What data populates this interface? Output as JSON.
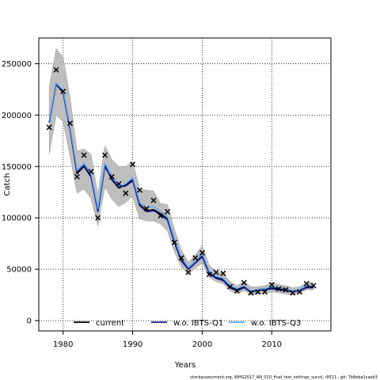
{
  "chart_data": {
    "type": "line",
    "xlabel": "Years",
    "ylabel": "Catch",
    "xlim": [
      1976.5,
      2018.5
    ],
    "ylim": [
      -10000,
      275000
    ],
    "xticks": [
      1980,
      1990,
      2000,
      2010
    ],
    "yticks": [
      0,
      50000,
      100000,
      150000,
      200000,
      250000
    ],
    "grid": "dotted",
    "legend_position": "bottom",
    "footer": "stockassessment.org,  WHG2017_AN_010_final_test_settings_survd, r9511 , git: 7b8eba1caeb3",
    "x": [
      1978,
      1979,
      1980,
      1981,
      1982,
      1983,
      1984,
      1985,
      1986,
      1987,
      1988,
      1989,
      1990,
      1991,
      1992,
      1993,
      1994,
      1995,
      1996,
      1997,
      1998,
      1999,
      2000,
      2001,
      2002,
      2003,
      2004,
      2005,
      2006,
      2007,
      2008,
      2009,
      2010,
      2011,
      2012,
      2013,
      2014,
      2015,
      2016
    ],
    "observed": {
      "marker": "x",
      "values": [
        188000,
        244000,
        223000,
        192000,
        140000,
        161000,
        145000,
        100000,
        161000,
        140000,
        133000,
        124000,
        152000,
        127000,
        109000,
        117000,
        102000,
        106000,
        76000,
        61000,
        47000,
        61000,
        66000,
        45000,
        47000,
        46000,
        33000,
        29000,
        37000,
        27000,
        28000,
        28000,
        35000,
        31000,
        30000,
        27000,
        28000,
        36000,
        34000
      ]
    },
    "series": [
      {
        "name": "current",
        "color": "#000000",
        "values": [
          193000,
          230000,
          222000,
          186000,
          143000,
          150000,
          140000,
          107000,
          151000,
          137000,
          129000,
          132000,
          137000,
          113000,
          107000,
          108000,
          104000,
          99000,
          77000,
          59000,
          50000,
          56000,
          63000,
          47000,
          42000,
          40000,
          33000,
          30000,
          33000,
          28000,
          30000,
          31000,
          32000,
          31000,
          30000,
          28000,
          30000,
          33000,
          33000
        ]
      },
      {
        "name": "w.o. IBTS-Q1",
        "color": "#1a1a8c",
        "values": [
          193000,
          231000,
          223000,
          186000,
          145000,
          151000,
          141000,
          106000,
          150000,
          138000,
          130000,
          131000,
          136000,
          112000,
          106000,
          107000,
          103000,
          98000,
          76000,
          58000,
          50000,
          56000,
          62000,
          46000,
          41000,
          39000,
          32000,
          29000,
          32000,
          28000,
          29000,
          30000,
          31000,
          30000,
          29000,
          28000,
          29000,
          32000,
          32000
        ]
      },
      {
        "name": "w.o. IBTS-Q3",
        "color": "#4da6ff",
        "values": [
          194000,
          231000,
          224000,
          188000,
          146000,
          153000,
          143000,
          109000,
          153000,
          141000,
          131000,
          133000,
          139000,
          115000,
          110000,
          111000,
          106000,
          101000,
          79000,
          61000,
          52000,
          58000,
          65000,
          48000,
          43000,
          41000,
          34000,
          31000,
          34000,
          29000,
          30000,
          31000,
          33000,
          32000,
          31000,
          29000,
          30000,
          34000,
          34000
        ]
      }
    ],
    "confidence_band": {
      "fill": "#bebebe",
      "lower": [
        162000,
        200000,
        193000,
        160000,
        124000,
        128000,
        119000,
        92000,
        130000,
        118000,
        111000,
        115000,
        121000,
        99000,
        97000,
        97000,
        94000,
        87000,
        67000,
        52000,
        45000,
        51000,
        56000,
        42000,
        38000,
        36000,
        29000,
        26000,
        29000,
        25000,
        26000,
        27000,
        28000,
        27000,
        26000,
        25000,
        27000,
        30000,
        30000
      ],
      "upper": [
        227000,
        265000,
        256000,
        217000,
        165000,
        167000,
        162000,
        123000,
        170000,
        157000,
        150000,
        150000,
        155000,
        128000,
        127000,
        126000,
        114000,
        113000,
        89000,
        69000,
        57000,
        64000,
        73000,
        54000,
        48000,
        46000,
        38000,
        34000,
        38000,
        33000,
        33000,
        34000,
        37000,
        35000,
        34000,
        32000,
        33000,
        37000,
        37000
      ]
    }
  }
}
